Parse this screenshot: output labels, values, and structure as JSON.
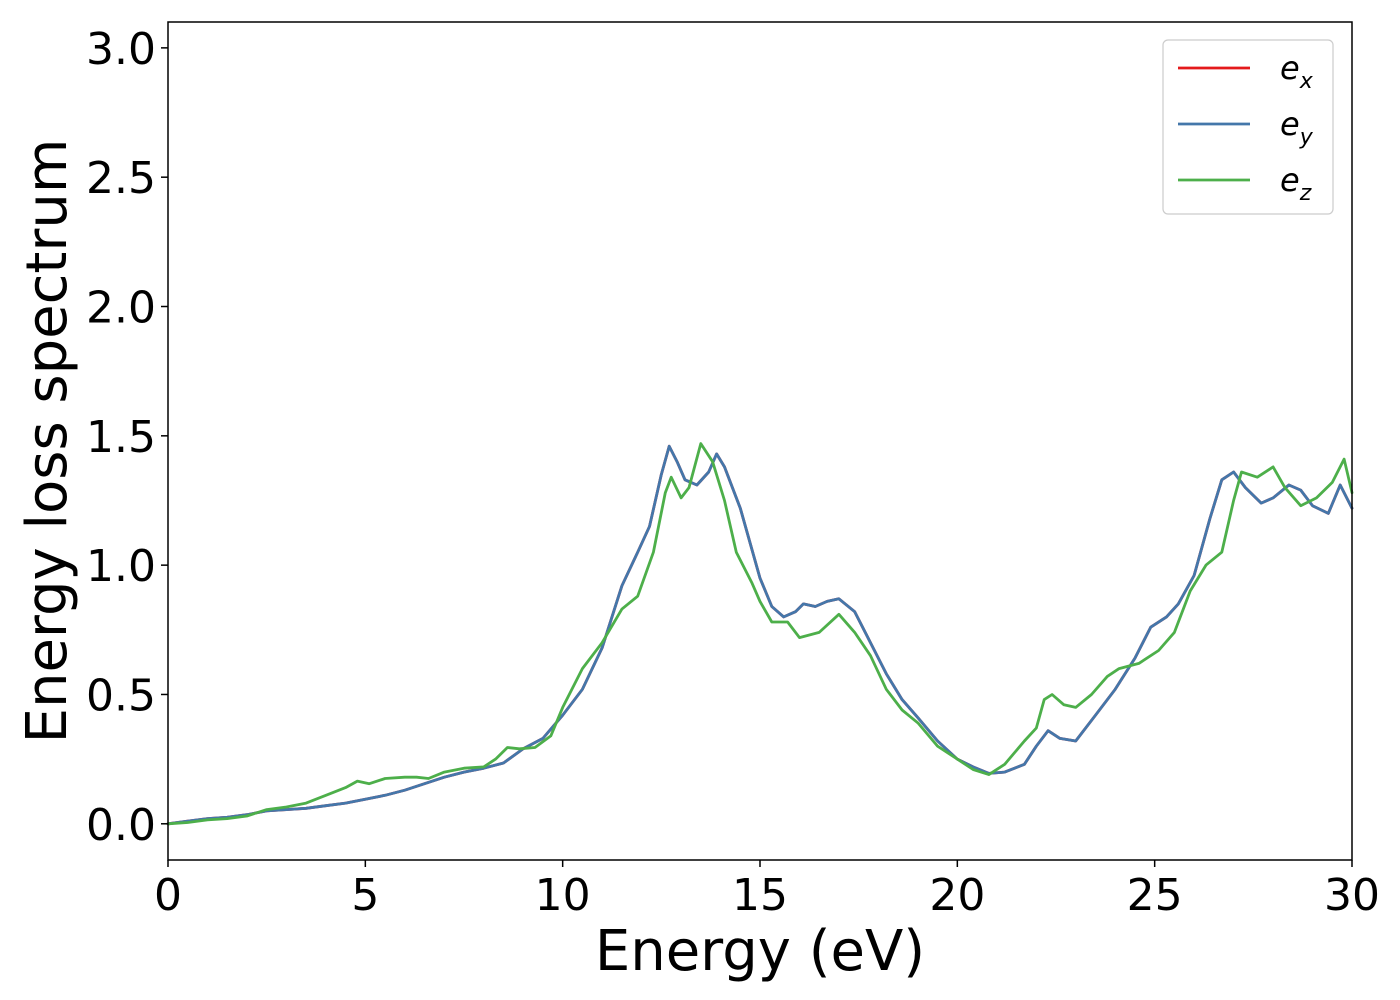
{
  "chart_data": {
    "type": "line",
    "xlabel": "Energy (eV)",
    "ylabel": "Energy loss spectrum",
    "xlim": [
      0,
      30
    ],
    "ylim": [
      -0.14,
      3.1
    ],
    "x_ticks": [
      0,
      5,
      10,
      15,
      20,
      25,
      30
    ],
    "x_tick_labels": [
      "0",
      "5",
      "10",
      "15",
      "20",
      "25",
      "30"
    ],
    "y_ticks": [
      0.0,
      0.5,
      1.0,
      1.5,
      2.0,
      2.5,
      3.0
    ],
    "y_tick_labels": [
      "0.0",
      "0.5",
      "1.0",
      "1.5",
      "2.0",
      "2.5",
      "3.0"
    ],
    "grid": false,
    "legend_position": "top-right",
    "series": [
      {
        "name": "e",
        "subscript": "x",
        "color": "#e41a1c",
        "points": [
          [
            0,
            0.0
          ],
          [
            0.5,
            0.01
          ],
          [
            1,
            0.02
          ],
          [
            1.5,
            0.025
          ],
          [
            2,
            0.035
          ],
          [
            2.5,
            0.05
          ],
          [
            3,
            0.055
          ],
          [
            3.5,
            0.06
          ],
          [
            4,
            0.07
          ],
          [
            4.5,
            0.08
          ],
          [
            5,
            0.095
          ],
          [
            5.5,
            0.11
          ],
          [
            6,
            0.13
          ],
          [
            6.5,
            0.155
          ],
          [
            7,
            0.18
          ],
          [
            7.5,
            0.2
          ],
          [
            8,
            0.215
          ],
          [
            8.5,
            0.235
          ],
          [
            9,
            0.29
          ],
          [
            9.5,
            0.33
          ],
          [
            10,
            0.42
          ],
          [
            10.5,
            0.52
          ],
          [
            11,
            0.68
          ],
          [
            11.5,
            0.92
          ],
          [
            11.9,
            1.05
          ],
          [
            12.2,
            1.15
          ],
          [
            12.5,
            1.35
          ],
          [
            12.7,
            1.46
          ],
          [
            12.9,
            1.4
          ],
          [
            13.1,
            1.33
          ],
          [
            13.4,
            1.31
          ],
          [
            13.7,
            1.36
          ],
          [
            13.9,
            1.43
          ],
          [
            14.1,
            1.38
          ],
          [
            14.5,
            1.22
          ],
          [
            15,
            0.95
          ],
          [
            15.3,
            0.84
          ],
          [
            15.6,
            0.8
          ],
          [
            15.9,
            0.82
          ],
          [
            16.1,
            0.85
          ],
          [
            16.4,
            0.84
          ],
          [
            16.7,
            0.86
          ],
          [
            17,
            0.87
          ],
          [
            17.4,
            0.82
          ],
          [
            17.8,
            0.7
          ],
          [
            18.2,
            0.58
          ],
          [
            18.6,
            0.48
          ],
          [
            19,
            0.41
          ],
          [
            19.5,
            0.32
          ],
          [
            20,
            0.25
          ],
          [
            20.4,
            0.22
          ],
          [
            20.8,
            0.195
          ],
          [
            21.2,
            0.2
          ],
          [
            21.7,
            0.23
          ],
          [
            22,
            0.3
          ],
          [
            22.3,
            0.36
          ],
          [
            22.6,
            0.33
          ],
          [
            23,
            0.32
          ],
          [
            23.5,
            0.42
          ],
          [
            24,
            0.52
          ],
          [
            24.5,
            0.64
          ],
          [
            24.9,
            0.76
          ],
          [
            25.3,
            0.8
          ],
          [
            25.6,
            0.85
          ],
          [
            26,
            0.96
          ],
          [
            26.4,
            1.18
          ],
          [
            26.7,
            1.33
          ],
          [
            27,
            1.36
          ],
          [
            27.3,
            1.3
          ],
          [
            27.7,
            1.24
          ],
          [
            28,
            1.26
          ],
          [
            28.4,
            1.31
          ],
          [
            28.7,
            1.29
          ],
          [
            29,
            1.23
          ],
          [
            29.4,
            1.2
          ],
          [
            29.7,
            1.31
          ],
          [
            30,
            1.22
          ]
        ]
      },
      {
        "name": "e",
        "subscript": "y",
        "color": "#4477aa",
        "points": [
          [
            0,
            0.0
          ],
          [
            0.5,
            0.01
          ],
          [
            1,
            0.02
          ],
          [
            1.5,
            0.025
          ],
          [
            2,
            0.035
          ],
          [
            2.5,
            0.05
          ],
          [
            3,
            0.055
          ],
          [
            3.5,
            0.06
          ],
          [
            4,
            0.07
          ],
          [
            4.5,
            0.08
          ],
          [
            5,
            0.095
          ],
          [
            5.5,
            0.11
          ],
          [
            6,
            0.13
          ],
          [
            6.5,
            0.155
          ],
          [
            7,
            0.18
          ],
          [
            7.5,
            0.2
          ],
          [
            8,
            0.215
          ],
          [
            8.5,
            0.235
          ],
          [
            9,
            0.29
          ],
          [
            9.5,
            0.33
          ],
          [
            10,
            0.42
          ],
          [
            10.5,
            0.52
          ],
          [
            11,
            0.68
          ],
          [
            11.5,
            0.92
          ],
          [
            11.9,
            1.05
          ],
          [
            12.2,
            1.15
          ],
          [
            12.5,
            1.35
          ],
          [
            12.7,
            1.46
          ],
          [
            12.9,
            1.4
          ],
          [
            13.1,
            1.33
          ],
          [
            13.4,
            1.31
          ],
          [
            13.7,
            1.36
          ],
          [
            13.9,
            1.43
          ],
          [
            14.1,
            1.38
          ],
          [
            14.5,
            1.22
          ],
          [
            15,
            0.95
          ],
          [
            15.3,
            0.84
          ],
          [
            15.6,
            0.8
          ],
          [
            15.9,
            0.82
          ],
          [
            16.1,
            0.85
          ],
          [
            16.4,
            0.84
          ],
          [
            16.7,
            0.86
          ],
          [
            17,
            0.87
          ],
          [
            17.4,
            0.82
          ],
          [
            17.8,
            0.7
          ],
          [
            18.2,
            0.58
          ],
          [
            18.6,
            0.48
          ],
          [
            19,
            0.41
          ],
          [
            19.5,
            0.32
          ],
          [
            20,
            0.25
          ],
          [
            20.4,
            0.22
          ],
          [
            20.8,
            0.195
          ],
          [
            21.2,
            0.2
          ],
          [
            21.7,
            0.23
          ],
          [
            22,
            0.3
          ],
          [
            22.3,
            0.36
          ],
          [
            22.6,
            0.33
          ],
          [
            23,
            0.32
          ],
          [
            23.5,
            0.42
          ],
          [
            24,
            0.52
          ],
          [
            24.5,
            0.64
          ],
          [
            24.9,
            0.76
          ],
          [
            25.3,
            0.8
          ],
          [
            25.6,
            0.85
          ],
          [
            26,
            0.96
          ],
          [
            26.4,
            1.18
          ],
          [
            26.7,
            1.33
          ],
          [
            27,
            1.36
          ],
          [
            27.3,
            1.3
          ],
          [
            27.7,
            1.24
          ],
          [
            28,
            1.26
          ],
          [
            28.4,
            1.31
          ],
          [
            28.7,
            1.29
          ],
          [
            29,
            1.23
          ],
          [
            29.4,
            1.2
          ],
          [
            29.7,
            1.31
          ],
          [
            30,
            1.22
          ]
        ]
      },
      {
        "name": "e",
        "subscript": "z",
        "color": "#4daf4a",
        "points": [
          [
            0,
            0.0
          ],
          [
            0.5,
            0.005
          ],
          [
            1,
            0.015
          ],
          [
            1.5,
            0.02
          ],
          [
            2,
            0.03
          ],
          [
            2.5,
            0.055
          ],
          [
            3,
            0.065
          ],
          [
            3.5,
            0.08
          ],
          [
            4,
            0.11
          ],
          [
            4.5,
            0.14
          ],
          [
            4.8,
            0.165
          ],
          [
            5.1,
            0.155
          ],
          [
            5.5,
            0.175
          ],
          [
            6,
            0.18
          ],
          [
            6.3,
            0.18
          ],
          [
            6.6,
            0.175
          ],
          [
            7,
            0.2
          ],
          [
            7.5,
            0.215
          ],
          [
            8,
            0.22
          ],
          [
            8.3,
            0.25
          ],
          [
            8.6,
            0.295
          ],
          [
            8.9,
            0.29
          ],
          [
            9.3,
            0.295
          ],
          [
            9.7,
            0.34
          ],
          [
            10,
            0.45
          ],
          [
            10.5,
            0.6
          ],
          [
            11,
            0.7
          ],
          [
            11.5,
            0.83
          ],
          [
            11.9,
            0.88
          ],
          [
            12.3,
            1.05
          ],
          [
            12.6,
            1.28
          ],
          [
            12.75,
            1.34
          ],
          [
            13,
            1.26
          ],
          [
            13.2,
            1.3
          ],
          [
            13.5,
            1.47
          ],
          [
            13.8,
            1.4
          ],
          [
            14.1,
            1.25
          ],
          [
            14.4,
            1.05
          ],
          [
            14.8,
            0.93
          ],
          [
            15,
            0.86
          ],
          [
            15.3,
            0.78
          ],
          [
            15.7,
            0.78
          ],
          [
            16,
            0.72
          ],
          [
            16.5,
            0.74
          ],
          [
            17,
            0.81
          ],
          [
            17.4,
            0.74
          ],
          [
            17.8,
            0.65
          ],
          [
            18.2,
            0.52
          ],
          [
            18.6,
            0.44
          ],
          [
            19,
            0.39
          ],
          [
            19.5,
            0.3
          ],
          [
            20,
            0.25
          ],
          [
            20.4,
            0.21
          ],
          [
            20.8,
            0.19
          ],
          [
            21.2,
            0.23
          ],
          [
            21.7,
            0.32
          ],
          [
            22,
            0.37
          ],
          [
            22.2,
            0.48
          ],
          [
            22.4,
            0.5
          ],
          [
            22.7,
            0.46
          ],
          [
            23,
            0.45
          ],
          [
            23.4,
            0.5
          ],
          [
            23.8,
            0.57
          ],
          [
            24.1,
            0.6
          ],
          [
            24.6,
            0.62
          ],
          [
            25.1,
            0.67
          ],
          [
            25.5,
            0.74
          ],
          [
            25.9,
            0.9
          ],
          [
            26.3,
            1.0
          ],
          [
            26.7,
            1.05
          ],
          [
            27,
            1.25
          ],
          [
            27.2,
            1.36
          ],
          [
            27.6,
            1.34
          ],
          [
            28,
            1.38
          ],
          [
            28.3,
            1.3
          ],
          [
            28.7,
            1.23
          ],
          [
            29.1,
            1.26
          ],
          [
            29.5,
            1.32
          ],
          [
            29.8,
            1.41
          ],
          [
            30,
            1.28
          ]
        ]
      }
    ]
  }
}
